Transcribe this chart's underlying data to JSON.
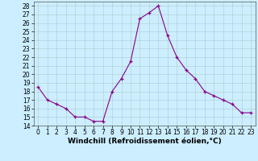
{
  "hours": [
    0,
    1,
    2,
    3,
    4,
    5,
    6,
    7,
    8,
    9,
    10,
    11,
    12,
    13,
    14,
    15,
    16,
    17,
    18,
    19,
    20,
    21,
    22,
    23
  ],
  "values": [
    18.5,
    17.0,
    16.5,
    16.0,
    15.0,
    15.0,
    14.5,
    14.5,
    18.0,
    19.5,
    21.5,
    26.5,
    27.2,
    28.0,
    24.5,
    22.0,
    20.5,
    19.5,
    18.0,
    17.5,
    17.0,
    16.5,
    15.5,
    15.5
  ],
  "line_color": "#880088",
  "marker": "+",
  "bg_color": "#cceeff",
  "grid_color": "#aacccc",
  "xlabel": "Windchill (Refroidissement éolien,°C)",
  "ylim": [
    14,
    28.5
  ],
  "xlim": [
    -0.5,
    23.5
  ],
  "yticks": [
    14,
    15,
    16,
    17,
    18,
    19,
    20,
    21,
    22,
    23,
    24,
    25,
    26,
    27,
    28
  ],
  "xticks": [
    0,
    1,
    2,
    3,
    4,
    5,
    6,
    7,
    8,
    9,
    10,
    11,
    12,
    13,
    14,
    15,
    16,
    17,
    18,
    19,
    20,
    21,
    22,
    23
  ],
  "tick_fontsize": 5.5,
  "xlabel_fontsize": 6.5
}
